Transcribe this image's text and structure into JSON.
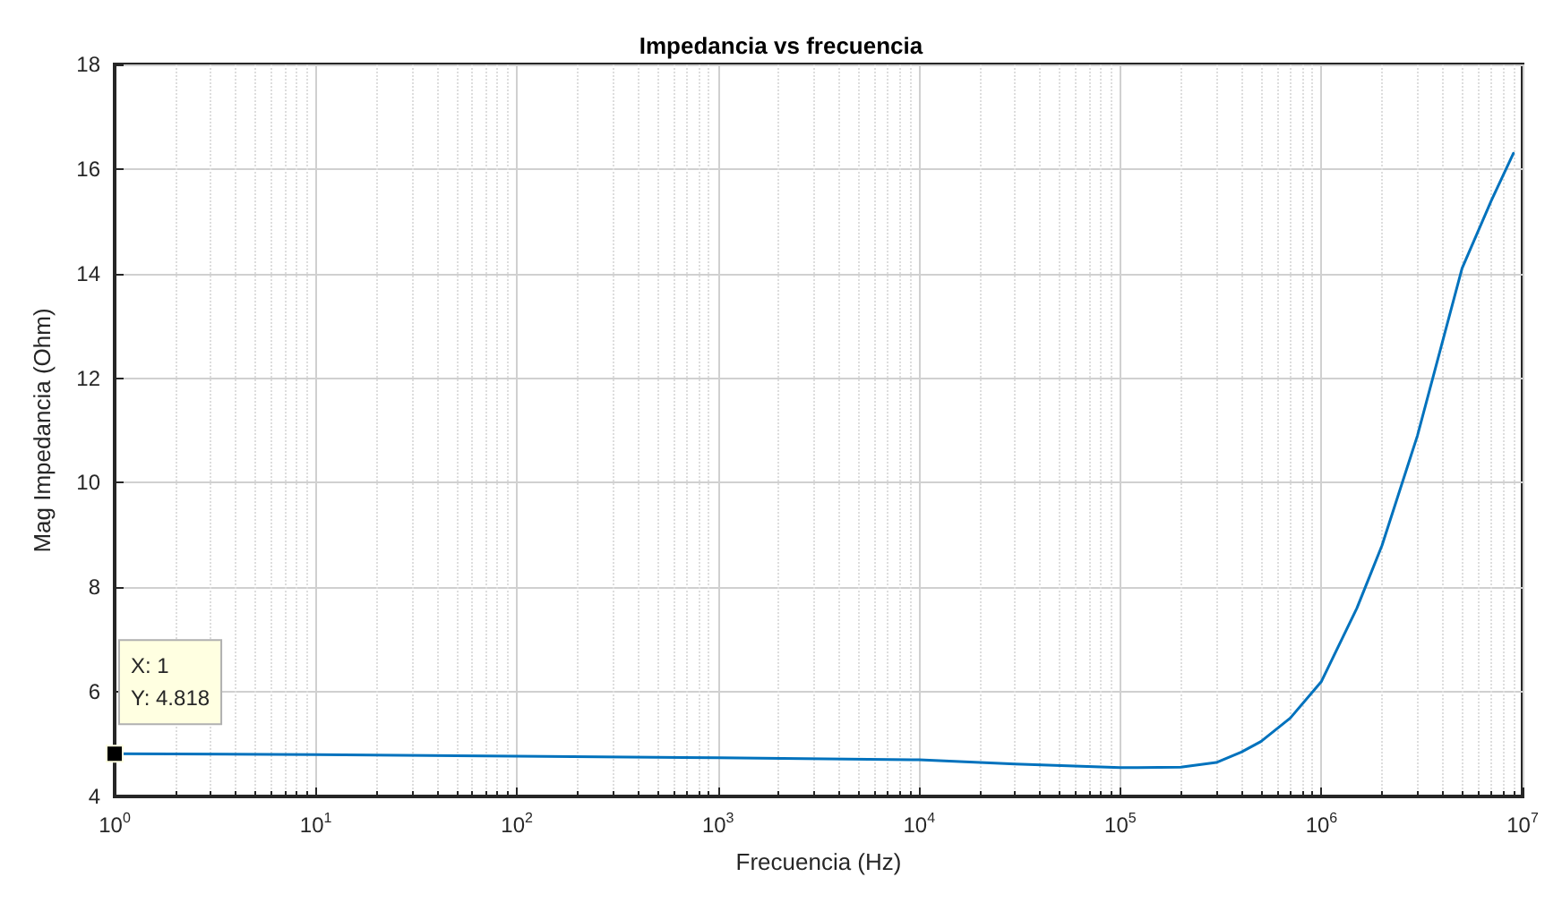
{
  "chart_data": {
    "type": "line",
    "title": "Impedancia vs frecuencia",
    "xlabel": "Frecuencia (Hz)",
    "ylabel": "Mag Impedancia (Ohm)",
    "log": "x",
    "grid": true,
    "marker": "none",
    "line_style": "solid",
    "xlim": [
      1,
      10000000
    ],
    "xticks": [
      {
        "value": 1,
        "label": "10$^{0}$"
      },
      {
        "value": 10,
        "label": "10$^{1}$"
      },
      {
        "value": 100,
        "label": "10$^{2}$"
      },
      {
        "value": 1000,
        "label": "10$^{3}$"
      },
      {
        "value": 10000,
        "label": "10$^{4}$"
      },
      {
        "value": 100000,
        "label": "10$^{5}$"
      },
      {
        "value": 1000000,
        "label": "10$^{6}$"
      },
      {
        "value": 10000000,
        "label": "10$^{7}$"
      }
    ],
    "ylim": [
      4,
      18
    ],
    "yticks": [
      4,
      6,
      8,
      10,
      12,
      14,
      16,
      18
    ],
    "annotations": [
      {
        "text": "X: 1\nY: 4.818",
        "x": 1,
        "y": 4.818
      }
    ],
    "series": [
      {
        "color": "#0072bd",
        "x": [
          1,
          10,
          100,
          1000,
          10000,
          30000,
          100000,
          200000,
          300000,
          400000,
          500000,
          700000,
          1000000,
          1500000,
          2000000,
          3000000,
          5000000,
          7000000,
          9000000
        ],
        "values": [
          4.818,
          4.8,
          4.77,
          4.74,
          4.7,
          4.62,
          4.55,
          4.56,
          4.65,
          4.85,
          5.05,
          5.5,
          6.2,
          7.6,
          8.8,
          10.9,
          14.1,
          15.4,
          16.3
        ]
      }
    ]
  }
}
